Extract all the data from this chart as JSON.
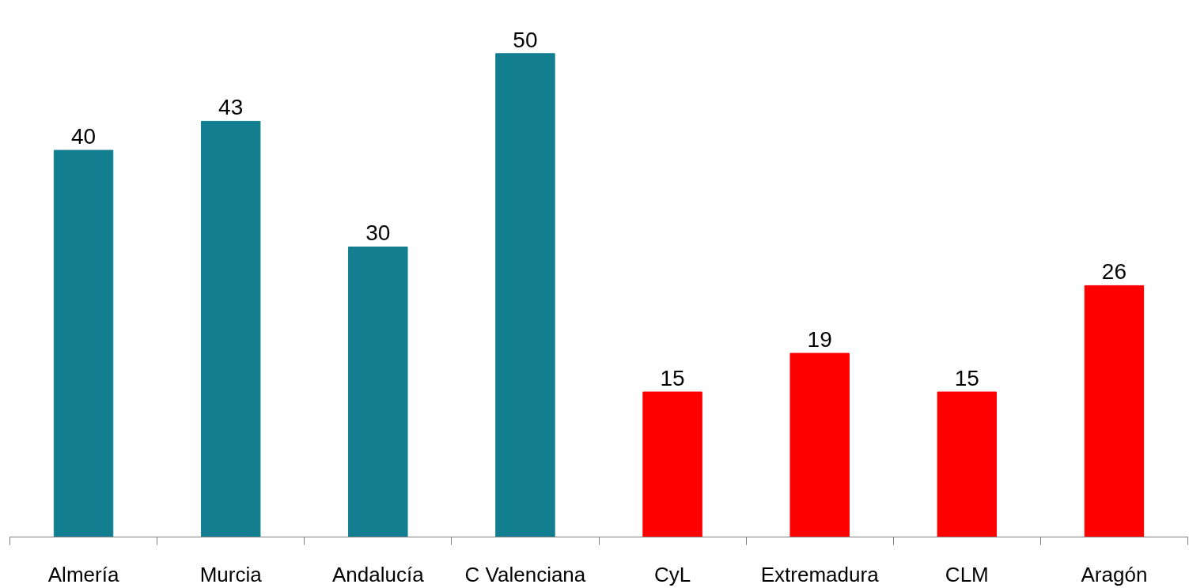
{
  "chart_data": {
    "type": "bar",
    "categories": [
      "Almería",
      "Murcia",
      "Andalucía",
      "C Valenciana",
      "CyL",
      "Extremadura",
      "CLM",
      "Aragón"
    ],
    "values": [
      40,
      43,
      30,
      50,
      15,
      19,
      15,
      26
    ],
    "colors": [
      "#127e8f",
      "#127e8f",
      "#127e8f",
      "#127e8f",
      "#ff0000",
      "#ff0000",
      "#ff0000",
      "#ff0000"
    ],
    "data_labels": true
  }
}
